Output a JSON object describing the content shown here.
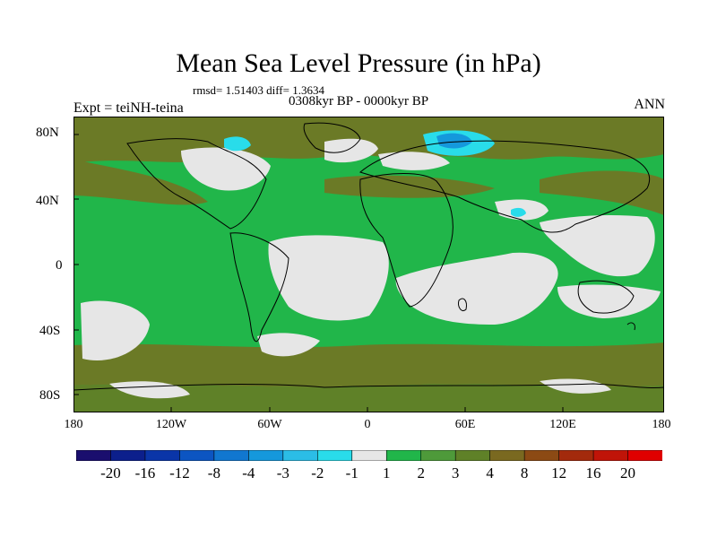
{
  "title": "Mean Sea Level Pressure (in hPa)",
  "stats_text": "rmsd= 1.51403 diff= 1.3634",
  "period_text": "0308kyr BP - 0000kyr BP",
  "experiment_text": "Expt = teiNH-teina",
  "season_text": "ANN",
  "lat_labels": [
    "80N",
    "40N",
    "0",
    "40S",
    "80S"
  ],
  "lon_labels": [
    "180",
    "120W",
    "60W",
    "0",
    "60E",
    "120E",
    "180"
  ],
  "colorbar": {
    "labels": [
      "-20",
      "-16",
      "-12",
      "-8",
      "-4",
      "-3",
      "-2",
      "-1",
      "1",
      "2",
      "3",
      "4",
      "8",
      "12",
      "16",
      "20"
    ],
    "colors": [
      "#1a0e6e",
      "#0c1f8c",
      "#0a35a8",
      "#0c55c2",
      "#1177d0",
      "#1598dc",
      "#2bbde6",
      "#29dcea",
      "#e6e6e6",
      "#21b64a",
      "#4e9a3a",
      "#5f8128",
      "#7a6920",
      "#8c4a14",
      "#a32a0c",
      "#c01408",
      "#e00000"
    ]
  },
  "palette": {
    "water_light": "#e6e6e6",
    "green": "#21b64a",
    "olive": "#6b7a26",
    "brown": "#7a6920",
    "cyan": "#29dcea",
    "blue": "#1598dc"
  }
}
